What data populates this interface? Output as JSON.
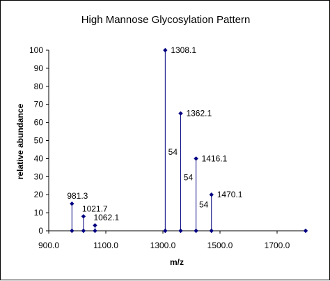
{
  "chart_data": {
    "type": "scatter",
    "title": "High Mannose Glycosylation Pattern",
    "xlabel": "m/z",
    "ylabel": "relative abundance",
    "xlim": [
      900,
      1800
    ],
    "ylim": [
      0,
      100
    ],
    "x_ticks": [
      "900.0",
      "1100.0",
      "1300.0",
      "1500.0",
      "1700.0"
    ],
    "y_ticks": [
      "0",
      "10",
      "20",
      "30",
      "40",
      "50",
      "60",
      "70",
      "80",
      "90",
      "100"
    ],
    "grid": false,
    "legend": "none",
    "marker_color": "#000080",
    "points": [
      {
        "x": 981.3,
        "y": 15,
        "label": "981.3"
      },
      {
        "x": 1021.7,
        "y": 8,
        "label": "1021.7"
      },
      {
        "x": 1062.1,
        "y": 3,
        "label": "1062.1"
      },
      {
        "x": 1308.1,
        "y": 100,
        "label": "1308.1"
      },
      {
        "x": 1362.1,
        "y": 65,
        "label": "1362.1"
      },
      {
        "x": 1416.1,
        "y": 40,
        "label": "1416.1"
      },
      {
        "x": 1470.1,
        "y": 20,
        "label": "1470.1"
      }
    ],
    "baseline_points": [
      {
        "x": 981.3,
        "y": 0
      },
      {
        "x": 1021.7,
        "y": 0
      },
      {
        "x": 1062.1,
        "y": 0
      },
      {
        "x": 1308.1,
        "y": 0
      },
      {
        "x": 1362.1,
        "y": 0
      },
      {
        "x": 1416.1,
        "y": 0
      },
      {
        "x": 1470.1,
        "y": 0
      },
      {
        "x": 1800,
        "y": 0
      }
    ],
    "annotations": [
      {
        "text": "54",
        "x": 1335,
        "y": 42
      },
      {
        "text": "54",
        "x": 1389,
        "y": 28
      },
      {
        "text": "54",
        "x": 1443,
        "y": 13
      }
    ]
  }
}
